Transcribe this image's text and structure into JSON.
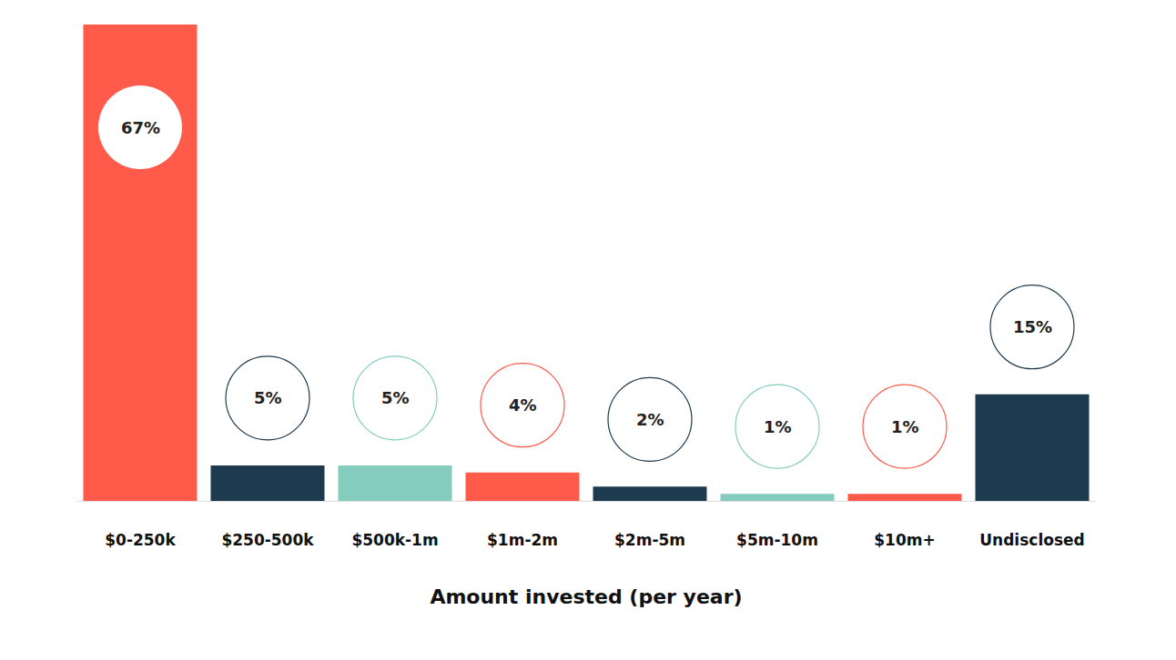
{
  "chart_data": {
    "type": "bar",
    "x_label": "Amount invested (per year)",
    "categories": [
      "$0-250k",
      "$250-500k",
      "$500k-1m",
      "$1m-2m",
      "$2m-5m",
      "$5m-10m",
      "$10m+",
      "Undisclosed"
    ],
    "values": [
      67,
      5,
      5,
      4,
      2,
      1,
      1,
      15
    ],
    "value_labels": [
      "67%",
      "5%",
      "5%",
      "4%",
      "2%",
      "1%",
      "1%",
      "15%"
    ],
    "colors": [
      "#ff5a4a",
      "#1e3a4f",
      "#84ccbe",
      "#ff5a4a",
      "#1e3a4f",
      "#84ccbe",
      "#ff5a4a",
      "#1e3a4f"
    ],
    "ylim": [
      0,
      67
    ],
    "data_labels": true,
    "tick_labels": "x"
  }
}
